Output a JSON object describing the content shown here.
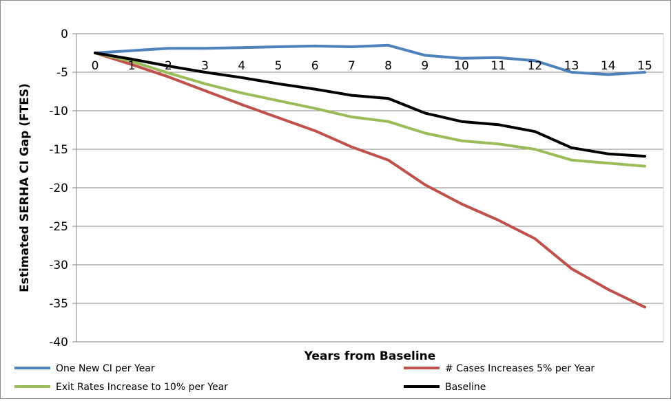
{
  "chart_data": {
    "type": "line",
    "title": "",
    "xlabel": "Years from Baseline",
    "ylabel": "Estimated SERHA CI Gap (FTES)",
    "x": [
      0,
      1,
      2,
      3,
      4,
      5,
      6,
      7,
      8,
      9,
      10,
      11,
      12,
      13,
      14,
      15
    ],
    "x_tick_labels": [
      "0",
      "1",
      "2",
      "3",
      "4",
      "5",
      "6",
      "7",
      "8",
      "9",
      "10",
      "11",
      "12",
      "13",
      "14",
      "15"
    ],
    "y_tick_labels": [
      "0",
      "-5",
      "-10",
      "-15",
      "-20",
      "-25",
      "-30",
      "-35",
      "-40"
    ],
    "ylim": [
      -40,
      0
    ],
    "grid": "horizontal",
    "legend_position": "bottom",
    "series": [
      {
        "name": "One New CI per Year",
        "color": "#4f81bd",
        "values": [
          -2.5,
          -2.2,
          -1.9,
          -1.9,
          -1.8,
          -1.7,
          -1.6,
          -1.7,
          -1.5,
          -2.8,
          -3.2,
          -3.1,
          -3.5,
          -5.0,
          -5.3,
          -5.0
        ]
      },
      {
        "name": "# Cases Increases 5% per Year",
        "color": "#c0504d",
        "values": [
          -2.5,
          -4.0,
          -5.6,
          -7.4,
          -9.2,
          -10.9,
          -12.6,
          -14.7,
          -16.4,
          -19.6,
          -22.1,
          -24.2,
          -26.6,
          -30.5,
          -33.2,
          -35.5
        ]
      },
      {
        "name": "Exit Rates Increase to 10% per Year",
        "color": "#9bbb59",
        "values": [
          -2.5,
          -3.6,
          -5.1,
          -6.5,
          -7.7,
          -8.7,
          -9.7,
          -10.8,
          -11.4,
          -12.9,
          -13.9,
          -14.3,
          -15.0,
          -16.4,
          -16.8,
          -17.2
        ]
      },
      {
        "name": "Baseline",
        "color": "#000000",
        "values": [
          -2.5,
          -3.3,
          -4.2,
          -5.0,
          -5.7,
          -6.5,
          -7.2,
          -8.0,
          -8.4,
          -10.3,
          -11.4,
          -11.8,
          -12.7,
          -14.8,
          -15.6,
          -15.9
        ]
      }
    ]
  }
}
